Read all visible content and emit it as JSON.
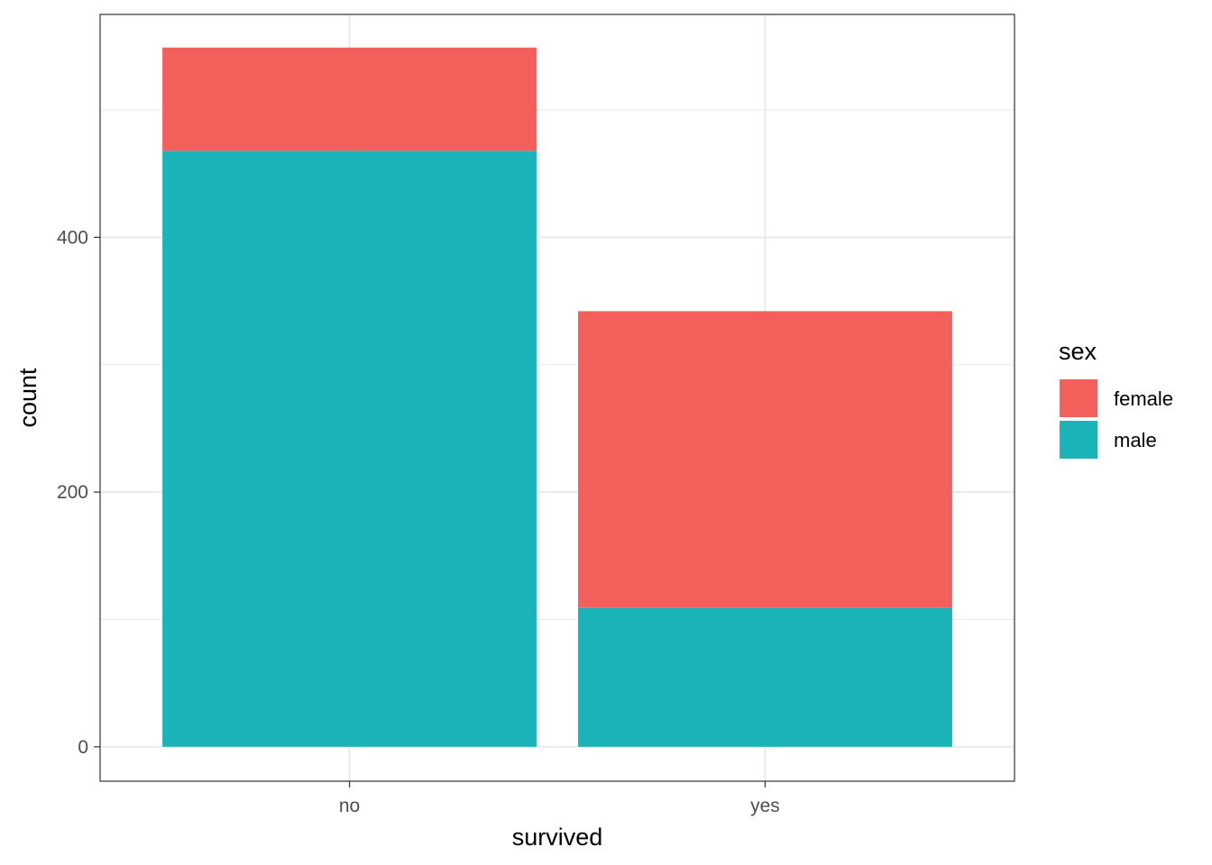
{
  "chart_data": {
    "type": "bar",
    "stacked": true,
    "categories": [
      "no",
      "yes"
    ],
    "series": [
      {
        "name": "male",
        "values": [
          468,
          109
        ],
        "color": "#19B3B8"
      },
      {
        "name": "female",
        "values": [
          81,
          233
        ],
        "color": "#F3605C"
      }
    ],
    "xlabel": "survived",
    "ylabel": "count",
    "ylim": [
      -27,
      575
    ],
    "yticks": [
      0,
      200,
      400
    ],
    "ytick_labels": [
      "0",
      "200",
      "400"
    ],
    "ygrid_minor": [
      100,
      300,
      500
    ],
    "grid": true,
    "legend": {
      "title": "sex",
      "position": "right",
      "entries": [
        {
          "label": "female",
          "color": "#F3605C"
        },
        {
          "label": "male",
          "color": "#19B3B8"
        }
      ]
    }
  }
}
